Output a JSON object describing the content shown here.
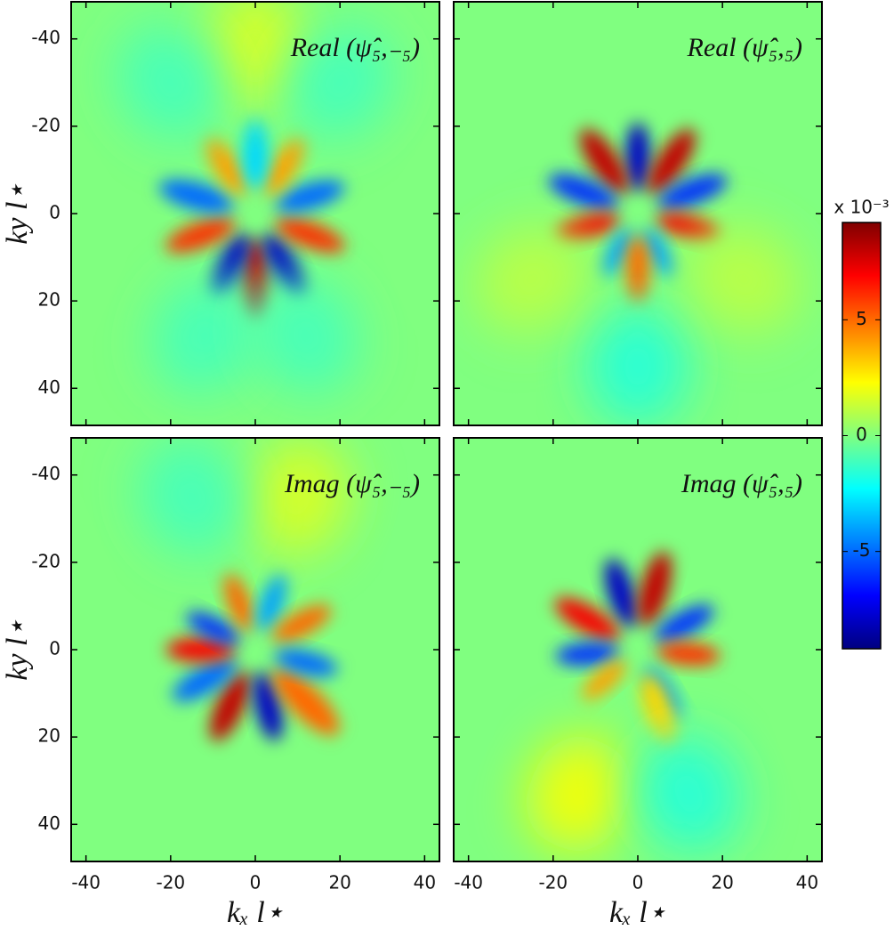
{
  "chart_data": [
    {
      "type": "heatmap",
      "title": "Real (ψ̂₅,₋₅)",
      "ylabel": "ky l⋆",
      "x": [
        0,
        -6,
        7,
        -13,
        13,
        -14,
        13,
        -7,
        7,
        0,
        0,
        -20,
        20,
        -12,
        12
      ],
      "y": [
        15,
        12,
        12,
        5,
        5,
        -4,
        -4,
        -11,
        -11,
        -14,
        -38,
        -30,
        -30,
        28,
        28
      ],
      "values": [
        8,
        -8,
        -8,
        6,
        6,
        -5,
        -5,
        4,
        4,
        -3,
        1.5,
        -1,
        -1,
        -1,
        -1
      ],
      "xlim": [
        -43.5,
        43.5
      ],
      "ylim": [
        -48.5,
        48.5
      ],
      "xticks": [
        -40,
        -20,
        0,
        20,
        40
      ],
      "yticks": [
        -40,
        -20,
        0,
        20,
        40
      ]
    },
    {
      "type": "heatmap",
      "title": "Real (ψ̂₅,₅)",
      "x": [
        0,
        -8,
        8,
        -13,
        13,
        -12,
        12,
        -5,
        5,
        0,
        0,
        -25,
        25
      ],
      "y": [
        -13,
        -12,
        -12,
        -5,
        -5,
        3,
        3,
        9,
        9,
        13,
        35,
        15,
        15
      ],
      "values": [
        -8,
        8,
        8,
        -6,
        -6,
        7,
        7,
        -4,
        -4,
        5,
        -1.5,
        1,
        1
      ],
      "xlim": [
        -43.5,
        43.5
      ],
      "ylim": [
        -48.5,
        48.5
      ],
      "xticks": [
        -40,
        -20,
        0,
        20,
        40
      ],
      "yticks": [
        -40,
        -20,
        0,
        20,
        40
      ]
    },
    {
      "type": "heatmap",
      "title": "Imag (ψ̂₅,₋₅)",
      "xlabel": "kₓ l⋆",
      "ylabel": "ky l⋆",
      "x": [
        -6,
        3,
        12,
        -12,
        -13,
        -10,
        -4,
        4,
        11,
        12,
        10,
        -15
      ],
      "y": [
        13,
        13,
        12,
        7,
        0,
        -5,
        -11,
        -11,
        -6,
        3,
        -35,
        -35
      ],
      "values": [
        8,
        -8,
        5,
        -5,
        7,
        -6,
        5,
        -4,
        5,
        -5,
        1.5,
        -1
      ],
      "xlim": [
        -43.5,
        43.5
      ],
      "ylim": [
        -48.5,
        48.5
      ],
      "xticks": [
        -40,
        -20,
        0,
        20,
        40
      ],
      "yticks": [
        -40,
        -20,
        0,
        20,
        40
      ]
    },
    {
      "type": "heatmap",
      "title": "Imag (ψ̂₅,₅)",
      "xlabel": "kₓ l⋆",
      "x": [
        -4,
        4,
        -12,
        11,
        -12,
        12,
        -8,
        6,
        5,
        -14,
        12
      ],
      "y": [
        -13,
        -14,
        -7,
        -6,
        1,
        1,
        7,
        10,
        14,
        33,
        33
      ],
      "values": [
        -8,
        8,
        7,
        -6,
        -6,
        6,
        4,
        -4,
        3,
        2,
        -1.5
      ],
      "xlim": [
        -43.5,
        43.5
      ],
      "ylim": [
        -48.5,
        48.5
      ],
      "xticks": [
        -40,
        -20,
        0,
        20,
        40
      ],
      "yticks": [
        -40,
        -20,
        0,
        20,
        40
      ]
    },
    {
      "type": "colorbar",
      "label": "x 10⁻³",
      "clim": [
        -9.2,
        9.2
      ],
      "cticks": [
        -5,
        0,
        5
      ]
    }
  ]
}
